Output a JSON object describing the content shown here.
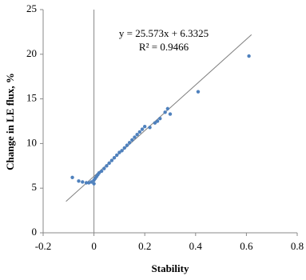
{
  "chart_data": {
    "type": "scatter",
    "xlabel": "Stability",
    "ylabel": "Change in LE flux, %",
    "series": [
      {
        "color": "#4f81bd",
        "x": [
          -0.085,
          -0.06,
          -0.045,
          -0.03,
          -0.02,
          -0.01,
          0,
          0,
          0.005,
          0.01,
          0.015,
          0.02,
          0.03,
          0.04,
          0.05,
          0.06,
          0.07,
          0.08,
          0.09,
          0.1,
          0.11,
          0.12,
          0.13,
          0.14,
          0.15,
          0.16,
          0.17,
          0.18,
          0.19,
          0.2,
          0.22,
          0.24,
          0.25,
          0.26,
          0.28,
          0.29,
          0.3,
          0.41,
          0.61
        ],
        "values": [
          6.2,
          5.8,
          5.7,
          5.6,
          5.6,
          5.7,
          5.5,
          5.9,
          6.1,
          6.3,
          6.5,
          6.7,
          6.9,
          7.2,
          7.5,
          7.8,
          8.1,
          8.4,
          8.7,
          9.0,
          9.2,
          9.5,
          9.8,
          10.1,
          10.4,
          10.7,
          11.0,
          11.3,
          11.6,
          11.9,
          11.8,
          12.3,
          12.5,
          12.8,
          13.5,
          13.9,
          13.3,
          15.8,
          19.8
        ]
      }
    ],
    "trendline": {
      "slope": 25.573,
      "intercept": 6.3325,
      "xrange": [
        -0.11,
        0.62
      ],
      "color": "#7f7f7f",
      "equation": "y = 25.573x + 6.3325",
      "r2": "R² = 0.9466"
    },
    "xlim": [
      -0.2,
      0.8
    ],
    "xticks": [
      -0.2,
      0,
      0.2,
      0.4,
      0.6,
      0.8
    ],
    "ylim": [
      0,
      25
    ],
    "yticks": [
      0,
      5,
      10,
      15,
      20,
      25
    ]
  }
}
